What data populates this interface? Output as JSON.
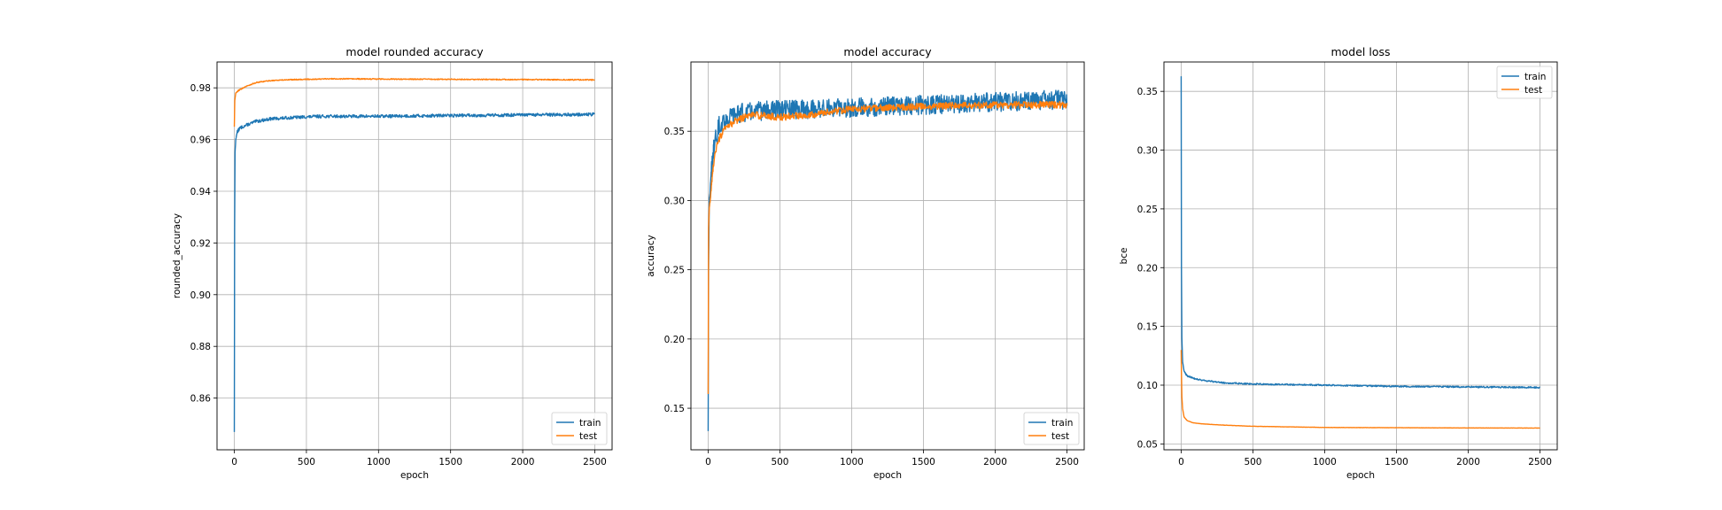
{
  "colors": {
    "train": "#1f77b4",
    "test": "#ff7f0e",
    "grid": "#b0b0b0"
  },
  "chart_data": [
    {
      "type": "line",
      "title": "model rounded accuracy",
      "xlabel": "epoch",
      "ylabel": "rounded_accuracy",
      "xlim": [
        -120,
        2620
      ],
      "ylim": [
        0.84,
        0.99
      ],
      "xticks": [
        0,
        500,
        1000,
        1500,
        2000,
        2500
      ],
      "xtick_labels": [
        "0",
        "500",
        "1000",
        "1500",
        "2000",
        "2500"
      ],
      "yticks": [
        0.86,
        0.88,
        0.9,
        0.92,
        0.94,
        0.96,
        0.98
      ],
      "ytick_labels": [
        "0.86",
        "0.88",
        "0.90",
        "0.92",
        "0.94",
        "0.96",
        "0.98"
      ],
      "grid": true,
      "legend_position": "lower-right",
      "noise": [
        0.0006,
        0.0002
      ],
      "series": [
        {
          "name": "train",
          "x": [
            0,
            2,
            5,
            10,
            20,
            40,
            80,
            150,
            250,
            400,
            600,
            1000,
            1500,
            2000,
            2500
          ],
          "y": [
            0.847,
            0.925,
            0.955,
            0.96,
            0.963,
            0.9645,
            0.9655,
            0.967,
            0.968,
            0.9685,
            0.969,
            0.969,
            0.9693,
            0.9695,
            0.9697
          ]
        },
        {
          "name": "test",
          "x": [
            0,
            3,
            10,
            30,
            60,
            100,
            150,
            250,
            400,
            700,
            1000,
            1500,
            2000,
            2500
          ],
          "y": [
            0.965,
            0.975,
            0.978,
            0.979,
            0.98,
            0.981,
            0.982,
            0.9828,
            0.9832,
            0.9835,
            0.9834,
            0.9833,
            0.9832,
            0.9831
          ]
        }
      ]
    },
    {
      "type": "line",
      "title": "model accuracy",
      "xlabel": "epoch",
      "ylabel": "accuracy",
      "xlim": [
        -120,
        2620
      ],
      "ylim": [
        0.12,
        0.4
      ],
      "xticks": [
        0,
        500,
        1000,
        1500,
        2000,
        2500
      ],
      "xtick_labels": [
        "0",
        "500",
        "1000",
        "1500",
        "2000",
        "2500"
      ],
      "yticks": [
        0.15,
        0.2,
        0.25,
        0.3,
        0.35
      ],
      "ytick_labels": [
        "0.15",
        "0.20",
        "0.25",
        "0.30",
        "0.35"
      ],
      "grid": true,
      "legend_position": "lower-right",
      "noise": [
        0.007,
        0.0025
      ],
      "series": [
        {
          "name": "train",
          "x": [
            0,
            3,
            8,
            15,
            30,
            50,
            80,
            120,
            200,
            400,
            700,
            1000,
            1500,
            2000,
            2500
          ],
          "y": [
            0.133,
            0.25,
            0.3,
            0.31,
            0.33,
            0.345,
            0.355,
            0.358,
            0.363,
            0.365,
            0.366,
            0.367,
            0.369,
            0.371,
            0.373
          ]
        },
        {
          "name": "test",
          "x": [
            0,
            3,
            8,
            15,
            30,
            50,
            80,
            120,
            200,
            300,
            500,
            700,
            1000,
            1500,
            2000,
            2500
          ],
          "y": [
            0.16,
            0.28,
            0.295,
            0.3,
            0.32,
            0.335,
            0.345,
            0.352,
            0.358,
            0.362,
            0.36,
            0.362,
            0.366,
            0.368,
            0.369,
            0.369
          ]
        }
      ]
    },
    {
      "type": "line",
      "title": "model loss",
      "xlabel": "epoch",
      "ylabel": "bce",
      "xlim": [
        -120,
        2620
      ],
      "ylim": [
        0.045,
        0.375
      ],
      "xticks": [
        0,
        500,
        1000,
        1500,
        2000,
        2500
      ],
      "xtick_labels": [
        "0",
        "500",
        "1000",
        "1500",
        "2000",
        "2500"
      ],
      "yticks": [
        0.05,
        0.1,
        0.15,
        0.2,
        0.25,
        0.3,
        0.35
      ],
      "ytick_labels": [
        "0.05",
        "0.10",
        "0.15",
        "0.20",
        "0.25",
        "0.30",
        "0.35"
      ],
      "grid": true,
      "legend_position": "upper-right",
      "noise": [
        0.0006,
        0.0001
      ],
      "series": [
        {
          "name": "train",
          "x": [
            0,
            2,
            5,
            10,
            20,
            40,
            80,
            150,
            300,
            500,
            1000,
            1500,
            2000,
            2500
          ],
          "y": [
            0.363,
            0.2,
            0.14,
            0.12,
            0.112,
            0.108,
            0.106,
            0.104,
            0.102,
            0.101,
            0.1,
            0.099,
            0.0985,
            0.098
          ]
        },
        {
          "name": "test",
          "x": [
            0,
            2,
            5,
            10,
            20,
            40,
            80,
            150,
            300,
            500,
            1000,
            1500,
            2000,
            2500
          ],
          "y": [
            0.13,
            0.11,
            0.09,
            0.08,
            0.073,
            0.07,
            0.068,
            0.067,
            0.066,
            0.065,
            0.064,
            0.0638,
            0.0636,
            0.0635
          ]
        }
      ]
    }
  ]
}
